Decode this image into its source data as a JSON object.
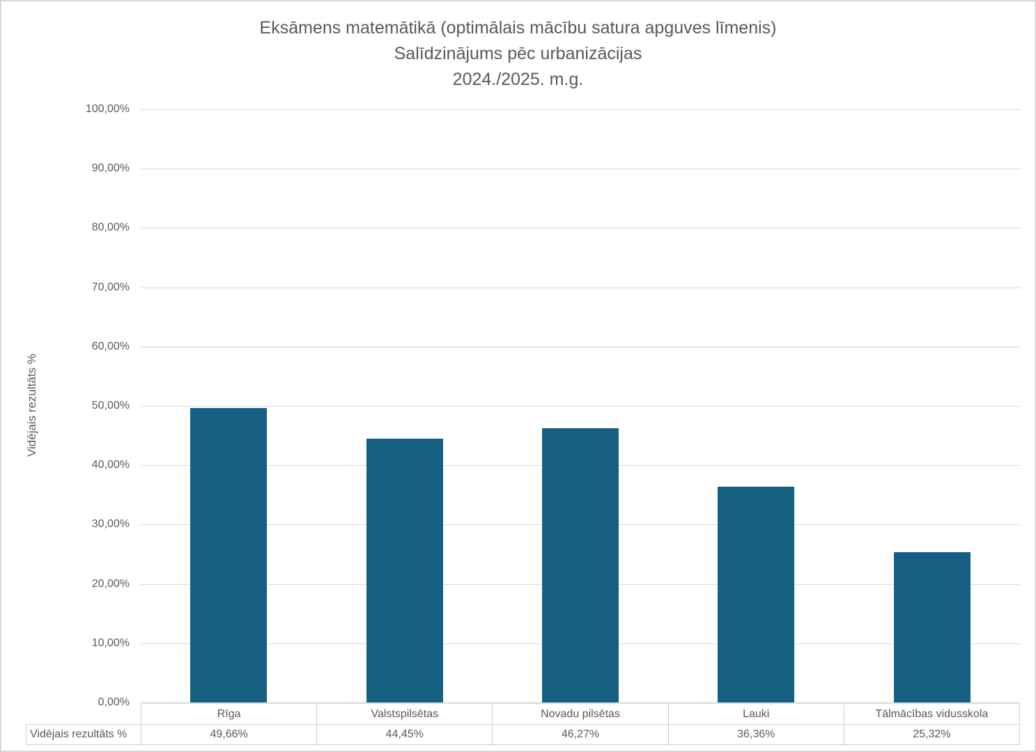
{
  "title": {
    "line1": "Eksāmens matemātikā (optimālais mācību satura apguves līmenis)",
    "line2": "Salīdzinājums pēc urbanizācijas",
    "line3": "2024./2025. m.g."
  },
  "y_axis": {
    "title": "Vidējais rezultāts %",
    "tick_labels": [
      "100,00%",
      "90,00%",
      "80,00%",
      "70,00%",
      "60,00%",
      "50,00%",
      "40,00%",
      "30,00%",
      "20,00%",
      "10,00%",
      "0,00%"
    ]
  },
  "data_table": {
    "row_header": "Vidējais rezultāts %"
  },
  "colors": {
    "bar": "#156082",
    "gridline": "#d9d9d9",
    "text": "#595959",
    "table_border": "#d0cece"
  },
  "chart_data": {
    "type": "bar",
    "title": "Eksāmens matemātikā (optimālais mācību satura apguves līmenis) — Salīdzinājums pēc urbanizācijas — 2024./2025. m.g.",
    "categories": [
      "Rīga",
      "Valstspilsētas",
      "Novadu pilsētas",
      "Lauki",
      "Tālmācības vidusskola"
    ],
    "values": [
      49.66,
      44.45,
      46.27,
      36.36,
      25.32
    ],
    "value_labels": [
      "49,66%",
      "44,45%",
      "46,27%",
      "36,36%",
      "25,32%"
    ],
    "series_name": "Vidējais rezultāts %",
    "xlabel": "",
    "ylabel": "Vidējais rezultāts %",
    "ylim": [
      0,
      100
    ],
    "y_tick_step": 10,
    "grid": true,
    "legend_position": "none",
    "data_table_shown": true
  }
}
